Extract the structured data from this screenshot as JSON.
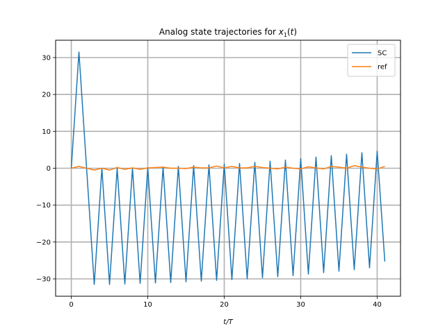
{
  "chart_data": {
    "type": "line",
    "title": "Analog state trajectories for x₁(t)",
    "xlabel": "t/T",
    "ylabel": "",
    "xlim": [
      -2.05,
      43.05
    ],
    "ylim": [
      -34.7,
      34.7
    ],
    "xticks": [
      0,
      10,
      20,
      30,
      40
    ],
    "yticks": [
      -30,
      -20,
      -10,
      0,
      10,
      20,
      30
    ],
    "grid": true,
    "legend_position": "top-right",
    "x": [
      0,
      1,
      2,
      3,
      4,
      5,
      6,
      7,
      8,
      9,
      10,
      11,
      12,
      13,
      14,
      15,
      16,
      17,
      18,
      19,
      20,
      21,
      22,
      23,
      24,
      25,
      26,
      27,
      28,
      29,
      30,
      31,
      32,
      33,
      34,
      35,
      36,
      37,
      38,
      39,
      40,
      41
    ],
    "series": [
      {
        "name": "SC",
        "color": "#1f77b4",
        "values": [
          0,
          31.5,
          0,
          -31.5,
          0,
          -31.5,
          0,
          -31.4,
          0,
          -31.2,
          0.2,
          -31.1,
          0.3,
          -31.0,
          0.5,
          -30.8,
          0.7,
          -30.6,
          0.9,
          -30.4,
          1.1,
          -30.2,
          1.3,
          -30.0,
          1.6,
          -29.7,
          1.9,
          -29.4,
          2.2,
          -29.1,
          2.6,
          -28.7,
          3.0,
          -28.3,
          3.4,
          -27.9,
          3.8,
          -27.5,
          4.2,
          -27.0,
          4.6,
          -25.3
        ]
      },
      {
        "name": "ref",
        "color": "#ff7f0e",
        "values": [
          0,
          0.5,
          0,
          -0.5,
          0,
          -0.5,
          0.2,
          -0.3,
          0.1,
          -0.3,
          0.1,
          0.2,
          0.3,
          0,
          0,
          -0.1,
          0.3,
          0.1,
          0.1,
          0.6,
          0.1,
          0.5,
          0.1,
          0.1,
          0.5,
          0.2,
          0,
          -0.2,
          0.3,
          0,
          -0.2,
          0.4,
          0.1,
          -0.2,
          0.5,
          0.3,
          0,
          0.7,
          0.3,
          0,
          -0.2,
          0.5
        ]
      }
    ]
  }
}
